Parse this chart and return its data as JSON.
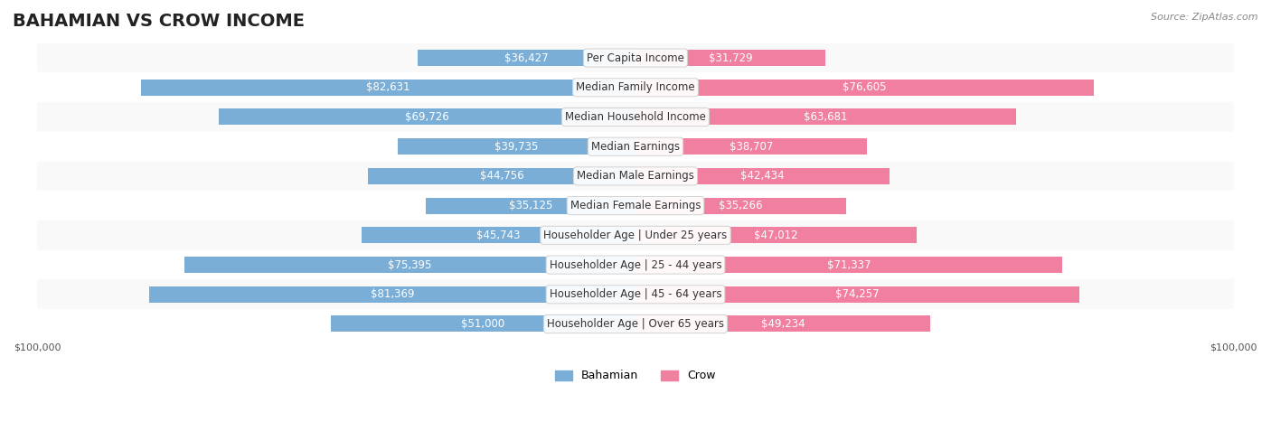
{
  "title": "BAHAMIAN VS CROW INCOME",
  "source": "Source: ZipAtlas.com",
  "categories": [
    "Per Capita Income",
    "Median Family Income",
    "Median Household Income",
    "Median Earnings",
    "Median Male Earnings",
    "Median Female Earnings",
    "Householder Age | Under 25 years",
    "Householder Age | 25 - 44 years",
    "Householder Age | 45 - 64 years",
    "Householder Age | Over 65 years"
  ],
  "bahamian": [
    36427,
    82631,
    69726,
    39735,
    44756,
    35125,
    45743,
    75395,
    81369,
    51000
  ],
  "crow": [
    31729,
    76605,
    63681,
    38707,
    42434,
    35266,
    47012,
    71337,
    74257,
    49234
  ],
  "max_value": 100000,
  "bahamian_color": "#7aaed6",
  "crow_color": "#f07fa0",
  "bahamian_color_dark": "#5b9ac8",
  "crow_color_dark": "#e85c8a",
  "bar_bg_color": "#f0f0f0",
  "row_bg_odd": "#f9f9f9",
  "row_bg_even": "#ffffff",
  "label_color_inside": "#ffffff",
  "label_color_outside": "#555555",
  "title_fontsize": 14,
  "label_fontsize": 8.5,
  "category_fontsize": 8.5,
  "axis_label_fontsize": 8,
  "legend_fontsize": 9,
  "inside_threshold": 20000
}
